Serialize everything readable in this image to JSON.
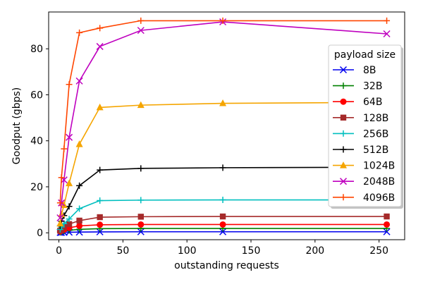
{
  "chart_data": {
    "type": "line",
    "title": "",
    "xlabel": "outstanding requests",
    "ylabel": "Goodput (gbps)",
    "xlim": [
      -8,
      270
    ],
    "ylim": [
      -3,
      96
    ],
    "xticks": [
      0,
      50,
      100,
      150,
      200,
      250
    ],
    "yticks": [
      0,
      20,
      40,
      60,
      80
    ],
    "grid": false,
    "legend": {
      "title": "payload size",
      "placement": "right"
    },
    "x": [
      1,
      2,
      4,
      8,
      16,
      32,
      64,
      128,
      256
    ],
    "series": [
      {
        "name": "8B",
        "color": "#0000ee",
        "marker": "x",
        "values": [
          0.1,
          0.15,
          0.2,
          0.25,
          0.3,
          0.4,
          0.45,
          0.45,
          0.45
        ]
      },
      {
        "name": "32B",
        "color": "#008000",
        "marker": "plus",
        "values": [
          0.3,
          0.5,
          0.8,
          1.1,
          1.5,
          1.8,
          1.9,
          1.9,
          1.9
        ]
      },
      {
        "name": "64B",
        "color": "#ff0000",
        "marker": "circle",
        "values": [
          0.6,
          0.9,
          1.4,
          2.2,
          3.0,
          3.5,
          3.6,
          3.6,
          3.6
        ]
      },
      {
        "name": "128B",
        "color": "#a52a2a",
        "marker": "square",
        "values": [
          0.9,
          1.5,
          2.5,
          3.8,
          5.3,
          6.8,
          7.0,
          7.1,
          7.1
        ]
      },
      {
        "name": "256B",
        "color": "#00bfbf",
        "marker": "plus",
        "values": [
          1.5,
          2.5,
          4.0,
          6.0,
          10.5,
          14.0,
          14.2,
          14.3,
          14.3
        ]
      },
      {
        "name": "512B",
        "color": "#000000",
        "marker": "plus",
        "values": [
          3.0,
          5.0,
          7.5,
          11.5,
          20.5,
          27.3,
          28.0,
          28.3,
          28.5
        ]
      },
      {
        "name": "1024B",
        "color": "#f5a500",
        "marker": "triangle",
        "values": [
          4.0,
          8.0,
          12.0,
          21.5,
          38.5,
          54.5,
          55.5,
          56.3,
          56.7
        ]
      },
      {
        "name": "2048B",
        "color": "#bf00bf",
        "marker": "x",
        "values": [
          6.5,
          13.0,
          23.0,
          41.5,
          66.0,
          81.0,
          88.0,
          91.7,
          86.5
        ]
      },
      {
        "name": "4096B",
        "color": "#ff4500",
        "marker": "plus",
        "values": [
          13.0,
          24.0,
          36.5,
          64.5,
          87.0,
          89.0,
          92.2,
          92.2,
          92.2
        ]
      }
    ]
  }
}
